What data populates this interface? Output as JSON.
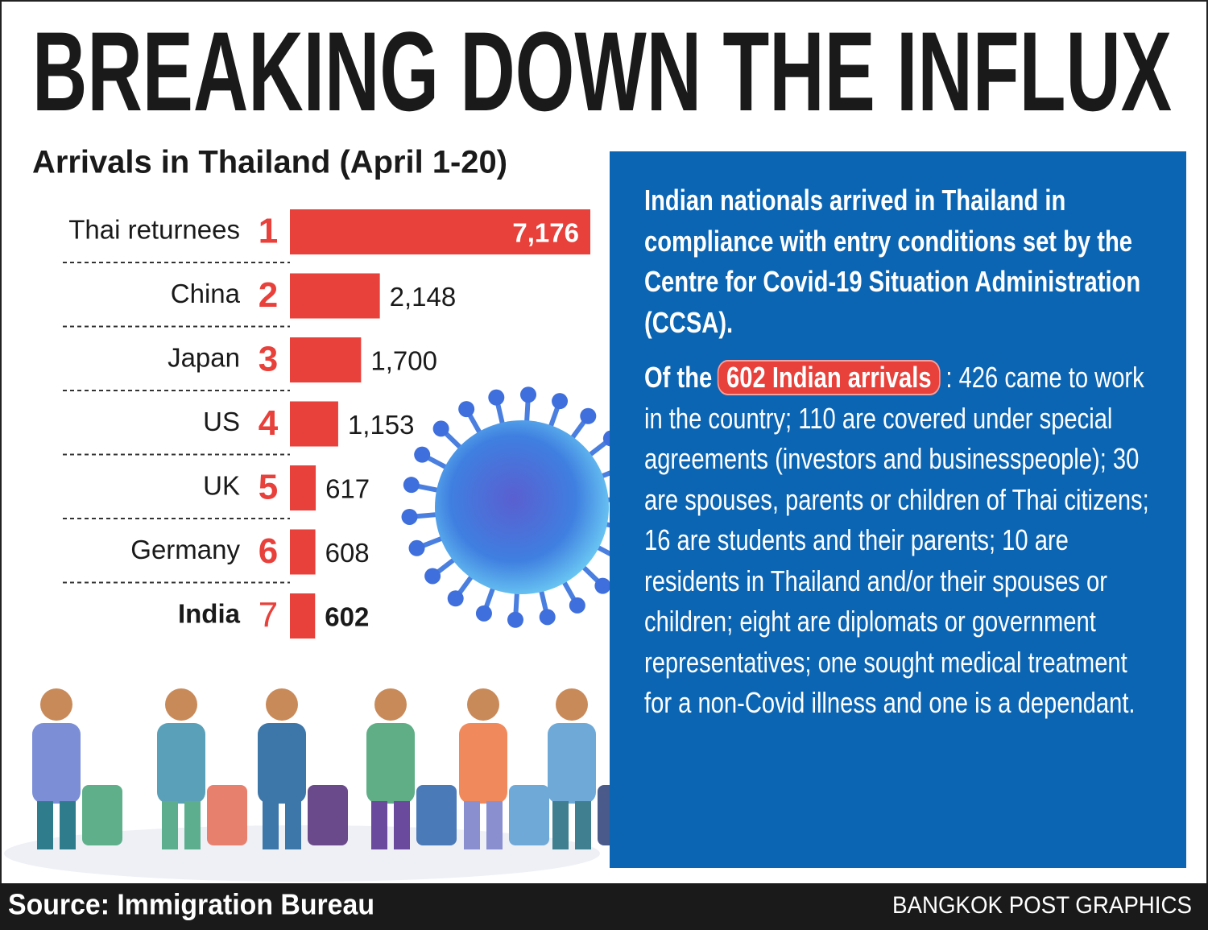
{
  "chart_data": {
    "type": "bar",
    "orientation": "horizontal",
    "title": "BREAKING DOWN THE INFLUX",
    "subtitle": "Arrivals in Thailand (April 1-20)",
    "categories": [
      "Thai returnees",
      "China",
      "Japan",
      "US",
      "UK",
      "Germany",
      "India"
    ],
    "ranks": [
      1,
      2,
      3,
      4,
      5,
      6,
      7
    ],
    "values": [
      7176,
      2148,
      1700,
      1153,
      617,
      608,
      602
    ],
    "value_labels": [
      "7,176",
      "2,148",
      "1,700",
      "1,153",
      "617",
      "608",
      "602"
    ],
    "highlight": "India",
    "color": "#e8403a",
    "panel": {
      "paragraph_1": "Indian nationals arrived in Thailand in compliance with entry conditions set by the Centre for Covid-19 Situation Administration (CCSA).",
      "paragraph_2_lead": "Of the",
      "paragraph_2_highlight": "602 Indian arrivals",
      "paragraph_2_rest": ": 426 came to work in the country; 110 are covered under special agreements (investors and businesspeople); 30 are spouses, parents or children of Thai citizens; 16 are students and their parents; 10 are residents in Thailand and/or their spouses or children; eight are diplomats or government representatives; one sought medical treatment for a non-Covid illness and one is a dependant."
    },
    "source": "Source: Immigration Bureau",
    "credit": "BANGKOK POST GRAPHICS"
  }
}
